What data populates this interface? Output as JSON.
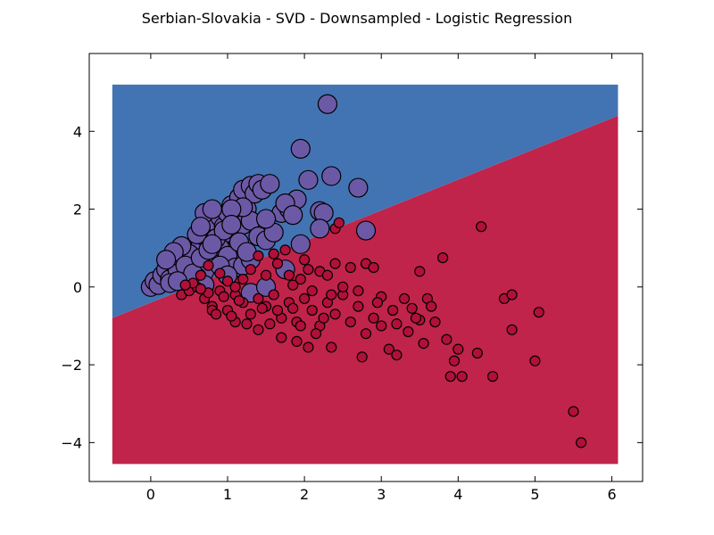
{
  "chart_data": {
    "type": "scatter",
    "title": "Serbian-Slovakia - SVD - Downsampled - Logistic Regression",
    "xlabel": "",
    "ylabel": "",
    "xlim": [
      -0.8,
      6.4
    ],
    "ylim": [
      -5.0,
      6.0
    ],
    "x_ticks": [
      0,
      1,
      2,
      3,
      4,
      5,
      6
    ],
    "y_ticks": [
      -4,
      -2,
      0,
      2,
      4
    ],
    "x_tick_labels": [
      "0",
      "1",
      "2",
      "3",
      "4",
      "5",
      "6"
    ],
    "y_tick_labels": [
      "−4",
      "−2",
      "0",
      "2",
      "4"
    ],
    "grid": false,
    "decision_regions": {
      "x_range": [
        -0.5,
        6.08
      ],
      "y_range": [
        -4.55,
        5.2
      ],
      "boundary_line": [
        [
          -0.5,
          -0.8
        ],
        [
          6.08,
          4.4
        ]
      ],
      "upper_region_color": "#4274b3",
      "lower_region_color": "#c0244a"
    },
    "series": [
      {
        "color": "#6c59a6",
        "marker_size": "large",
        "points": [
          [
            0.0,
            0.0
          ],
          [
            0.05,
            0.15
          ],
          [
            0.1,
            0.05
          ],
          [
            0.15,
            0.3
          ],
          [
            0.2,
            0.45
          ],
          [
            0.25,
            0.2
          ],
          [
            0.3,
            0.6
          ],
          [
            0.35,
            0.4
          ],
          [
            0.4,
            0.75
          ],
          [
            0.45,
            0.9
          ],
          [
            0.5,
            0.65
          ],
          [
            0.55,
            1.0
          ],
          [
            0.6,
            1.2
          ],
          [
            0.65,
            1.1
          ],
          [
            0.7,
            1.3
          ],
          [
            0.75,
            1.5
          ],
          [
            0.8,
            1.4
          ],
          [
            0.85,
            1.65
          ],
          [
            0.9,
            1.8
          ],
          [
            0.95,
            1.55
          ],
          [
            1.0,
            1.9
          ],
          [
            1.05,
            2.1
          ],
          [
            1.1,
            1.75
          ],
          [
            1.15,
            2.3
          ],
          [
            1.2,
            2.5
          ],
          [
            1.25,
            2.0
          ],
          [
            1.3,
            2.6
          ],
          [
            1.35,
            2.4
          ],
          [
            1.4,
            2.65
          ],
          [
            1.45,
            2.5
          ],
          [
            1.55,
            2.65
          ],
          [
            0.7,
            1.9
          ],
          [
            0.8,
            2.0
          ],
          [
            0.9,
            1.2
          ],
          [
            1.0,
            1.4
          ],
          [
            1.1,
            1.5
          ],
          [
            1.2,
            1.6
          ],
          [
            1.3,
            1.7
          ],
          [
            1.4,
            1.3
          ],
          [
            1.5,
            1.2
          ],
          [
            1.6,
            1.4
          ],
          [
            1.7,
            1.9
          ],
          [
            1.8,
            2.0
          ],
          [
            1.9,
            2.25
          ],
          [
            1.75,
            2.15
          ],
          [
            1.85,
            1.85
          ],
          [
            1.95,
            3.55
          ],
          [
            2.05,
            2.75
          ],
          [
            2.2,
            1.95
          ],
          [
            2.25,
            1.9
          ],
          [
            2.2,
            1.5
          ],
          [
            2.35,
            2.85
          ],
          [
            2.7,
            2.55
          ],
          [
            2.8,
            1.45
          ],
          [
            2.3,
            4.7
          ],
          [
            1.95,
            1.1
          ],
          [
            1.5,
            1.75
          ],
          [
            1.2,
            2.05
          ],
          [
            1.05,
            2.0
          ],
          [
            0.9,
            1.0
          ],
          [
            0.8,
            0.6
          ],
          [
            0.7,
            0.4
          ],
          [
            0.6,
            0.25
          ],
          [
            0.5,
            0.85
          ],
          [
            0.4,
            1.05
          ],
          [
            0.3,
            0.9
          ],
          [
            1.0,
            0.8
          ],
          [
            1.1,
            0.5
          ],
          [
            1.2,
            0.55
          ],
          [
            1.3,
            0.7
          ],
          [
            0.9,
            0.55
          ],
          [
            0.7,
            0.05
          ],
          [
            1.3,
            -0.15
          ],
          [
            1.5,
            0.0
          ],
          [
            1.75,
            0.45
          ],
          [
            0.25,
            0.1
          ],
          [
            0.45,
            0.55
          ],
          [
            0.55,
            0.35
          ],
          [
            0.65,
            0.75
          ],
          [
            0.75,
            0.95
          ],
          [
            0.85,
            1.25
          ],
          [
            0.95,
            1.45
          ],
          [
            1.05,
            1.6
          ],
          [
            1.15,
            1.15
          ],
          [
            1.25,
            0.9
          ],
          [
            1.0,
            0.3
          ],
          [
            0.2,
            0.7
          ],
          [
            0.35,
            0.15
          ],
          [
            0.6,
            1.35
          ],
          [
            0.65,
            1.55
          ],
          [
            0.8,
            1.1
          ]
        ]
      },
      {
        "color": "#b0103a",
        "marker_size": "small",
        "points": [
          [
            0.4,
            -0.2
          ],
          [
            0.5,
            -0.1
          ],
          [
            0.6,
            0.0
          ],
          [
            0.7,
            -0.3
          ],
          [
            0.8,
            -0.5
          ],
          [
            0.9,
            -0.1
          ],
          [
            1.0,
            -0.6
          ],
          [
            1.1,
            -0.2
          ],
          [
            1.2,
            -0.4
          ],
          [
            1.3,
            -0.7
          ],
          [
            1.4,
            -0.3
          ],
          [
            1.5,
            -0.5
          ],
          [
            1.6,
            -0.2
          ],
          [
            1.7,
            -0.8
          ],
          [
            1.8,
            -0.4
          ],
          [
            1.9,
            -0.9
          ],
          [
            2.0,
            -0.3
          ],
          [
            2.1,
            -0.6
          ],
          [
            2.2,
            -1.0
          ],
          [
            2.3,
            -0.4
          ],
          [
            2.4,
            -0.7
          ],
          [
            2.5,
            -0.2
          ],
          [
            2.6,
            -0.9
          ],
          [
            2.7,
            -0.5
          ],
          [
            2.8,
            -1.2
          ],
          [
            2.9,
            -0.8
          ],
          [
            3.0,
            -0.25
          ],
          [
            3.1,
            -1.6
          ],
          [
            3.2,
            -0.95
          ],
          [
            3.3,
            -0.3
          ],
          [
            3.4,
            -0.55
          ],
          [
            3.5,
            -0.85
          ],
          [
            3.55,
            -1.45
          ],
          [
            3.6,
            -0.3
          ],
          [
            3.7,
            -0.9
          ],
          [
            3.8,
            0.75
          ],
          [
            3.85,
            -1.35
          ],
          [
            3.9,
            -2.3
          ],
          [
            3.95,
            -1.9
          ],
          [
            4.05,
            -2.3
          ],
          [
            4.25,
            -1.7
          ],
          [
            4.3,
            1.55
          ],
          [
            4.45,
            -2.3
          ],
          [
            4.6,
            -0.3
          ],
          [
            4.7,
            -0.2
          ],
          [
            4.7,
            -1.1
          ],
          [
            5.0,
            -1.9
          ],
          [
            5.05,
            -0.65
          ],
          [
            5.5,
            -3.2
          ],
          [
            5.6,
            -4.0
          ],
          [
            2.75,
            -1.8
          ],
          [
            2.35,
            -1.55
          ],
          [
            2.05,
            -1.55
          ],
          [
            1.9,
            -1.4
          ],
          [
            1.7,
            -1.3
          ],
          [
            1.4,
            -1.1
          ],
          [
            1.1,
            -0.9
          ],
          [
            0.8,
            -0.6
          ],
          [
            2.2,
            0.4
          ],
          [
            2.3,
            0.3
          ],
          [
            2.4,
            0.6
          ],
          [
            2.5,
            0.0
          ],
          [
            2.6,
            0.5
          ],
          [
            2.8,
            0.6
          ],
          [
            2.9,
            0.5
          ],
          [
            2.0,
            0.7
          ],
          [
            2.05,
            0.45
          ],
          [
            1.95,
            0.2
          ],
          [
            1.85,
            0.05
          ],
          [
            1.8,
            0.3
          ],
          [
            1.65,
            0.6
          ],
          [
            1.5,
            0.3
          ],
          [
            1.4,
            0.8
          ],
          [
            1.3,
            0.45
          ],
          [
            1.2,
            0.2
          ],
          [
            1.1,
            0.0
          ],
          [
            1.0,
            0.15
          ],
          [
            0.9,
            0.35
          ],
          [
            0.75,
            0.55
          ],
          [
            0.65,
            0.3
          ],
          [
            0.55,
            0.1
          ],
          [
            2.4,
            1.5
          ],
          [
            2.45,
            1.65
          ],
          [
            1.6,
            0.85
          ],
          [
            1.75,
            0.95
          ],
          [
            3.2,
            -1.75
          ],
          [
            3.45,
            -0.8
          ],
          [
            3.5,
            0.4
          ],
          [
            3.0,
            -1.0
          ],
          [
            2.7,
            -0.1
          ],
          [
            2.25,
            -0.8
          ],
          [
            2.15,
            -1.2
          ],
          [
            1.95,
            -1.0
          ],
          [
            1.85,
            -0.55
          ],
          [
            1.65,
            -0.6
          ],
          [
            1.55,
            -0.95
          ],
          [
            1.45,
            -0.55
          ],
          [
            1.25,
            -0.95
          ],
          [
            1.15,
            -0.35
          ],
          [
            1.05,
            -0.75
          ],
          [
            0.95,
            -0.25
          ],
          [
            0.85,
            -0.7
          ],
          [
            0.75,
            -0.15
          ],
          [
            0.65,
            -0.05
          ],
          [
            0.45,
            0.05
          ],
          [
            2.95,
            -0.4
          ],
          [
            3.15,
            -0.6
          ],
          [
            3.35,
            -1.15
          ],
          [
            3.65,
            -0.5
          ],
          [
            4.0,
            -1.6
          ],
          [
            2.1,
            -0.1
          ],
          [
            2.35,
            -0.2
          ]
        ]
      }
    ]
  }
}
